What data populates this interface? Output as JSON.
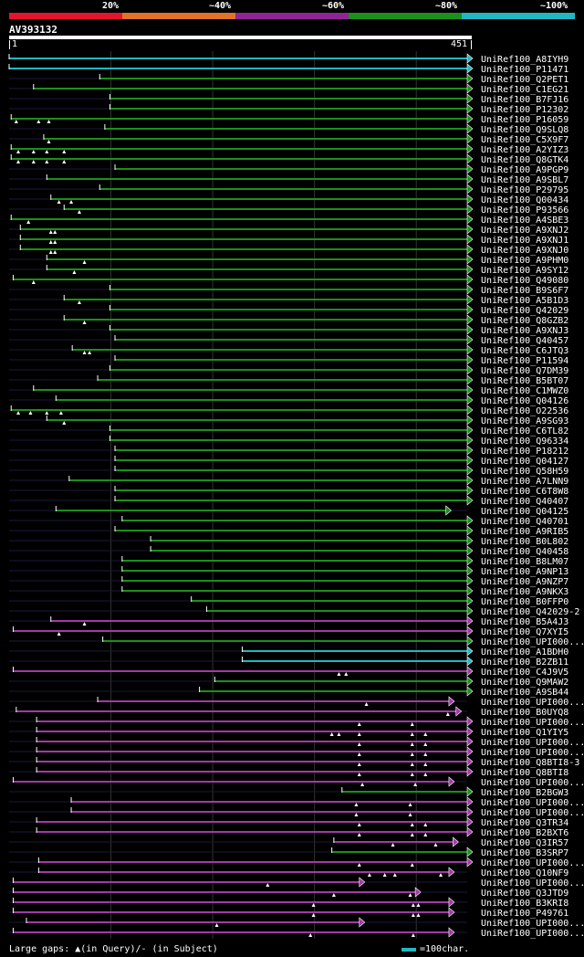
{
  "legend": {
    "segments": [
      {
        "label": "20%",
        "color": "#e4142e"
      },
      {
        "label": "~40%",
        "color": "#e27226"
      },
      {
        "label": "~60%",
        "color": "#8f2594"
      },
      {
        "label": "~80%",
        "color": "#1c8f1c"
      },
      {
        "label": "~100%",
        "color": "#21b7c2"
      }
    ]
  },
  "query": {
    "id": "AV393132",
    "start": "1",
    "end": "451",
    "length": 451
  },
  "footer": {
    "gaps_text": "Large gaps: ▲(in Query)/- (in Subject)",
    "scale_text": "=100char."
  },
  "colors": {
    "cyan": "#21b7c2",
    "green": "#1c8f1c",
    "purple": "#a23aa6",
    "faint": "#1a1a3a",
    "grid": "#333333"
  },
  "hits": [
    {
      "name": "UniRef100_A8IYH9",
      "color": "cyan",
      "start": 1,
      "end": 451,
      "tri": []
    },
    {
      "name": "UniRef100_P11471",
      "color": "cyan",
      "start": 1,
      "end": 451,
      "tri": []
    },
    {
      "name": "UniRef100_Q2PET1",
      "color": "green",
      "start": 90,
      "end": 451,
      "tri": []
    },
    {
      "name": "UniRef100_C1EG21",
      "color": "green",
      "start": 25,
      "end": 451,
      "tri": []
    },
    {
      "name": "UniRef100_B7FJ16",
      "color": "green",
      "start": 100,
      "end": 451,
      "tri": []
    },
    {
      "name": "UniRef100_P12302",
      "color": "green",
      "start": 100,
      "end": 451,
      "tri": []
    },
    {
      "name": "UniRef100_P16059",
      "color": "green",
      "start": 3,
      "end": 451,
      "tri": [
        8,
        30,
        40
      ]
    },
    {
      "name": "UniRef100_Q9SLQ8",
      "color": "green",
      "start": 95,
      "end": 451,
      "tri": []
    },
    {
      "name": "UniRef100_C5X9F7",
      "color": "green",
      "start": 35,
      "end": 451,
      "tri": [
        40
      ]
    },
    {
      "name": "UniRef100_A2YIZ3",
      "color": "green",
      "start": 3,
      "end": 451,
      "tri": [
        10,
        25,
        38,
        55
      ]
    },
    {
      "name": "UniRef100_Q8GTK4",
      "color": "green",
      "start": 3,
      "end": 451,
      "tri": [
        10,
        25,
        38,
        55
      ]
    },
    {
      "name": "UniRef100_A9PGP9",
      "color": "green",
      "start": 105,
      "end": 451,
      "tri": []
    },
    {
      "name": "UniRef100_A9SBL7",
      "color": "green",
      "start": 38,
      "end": 451,
      "tri": []
    },
    {
      "name": "UniRef100_P29795",
      "color": "green",
      "start": 90,
      "end": 451,
      "tri": []
    },
    {
      "name": "UniRef100_Q00434",
      "color": "green",
      "start": 42,
      "end": 451,
      "tri": [
        50,
        62
      ]
    },
    {
      "name": "UniRef100_P93566",
      "color": "green",
      "start": 55,
      "end": 451,
      "tri": [
        70
      ]
    },
    {
      "name": "UniRef100_A4SBE3",
      "color": "green",
      "start": 3,
      "end": 451,
      "tri": [
        20
      ]
    },
    {
      "name": "UniRef100_A9XNJ2",
      "color": "green",
      "start": 12,
      "end": 451,
      "tri": [
        42,
        46
      ]
    },
    {
      "name": "UniRef100_A9XNJ1",
      "color": "green",
      "start": 12,
      "end": 451,
      "tri": [
        42,
        46
      ]
    },
    {
      "name": "UniRef100_A9XNJ0",
      "color": "green",
      "start": 12,
      "end": 451,
      "tri": [
        42,
        46
      ]
    },
    {
      "name": "UniRef100_A9PHM0",
      "color": "green",
      "start": 38,
      "end": 451,
      "tri": [
        75
      ]
    },
    {
      "name": "UniRef100_A9SY12",
      "color": "green",
      "start": 38,
      "end": 451,
      "tri": [
        65
      ]
    },
    {
      "name": "UniRef100_Q49080",
      "color": "green",
      "start": 5,
      "end": 451,
      "tri": [
        25
      ]
    },
    {
      "name": "UniRef100_B9S6F7",
      "color": "green",
      "start": 100,
      "end": 451,
      "tri": []
    },
    {
      "name": "UniRef100_A5B1D3",
      "color": "green",
      "start": 55,
      "end": 451,
      "tri": [
        70
      ]
    },
    {
      "name": "UniRef100_Q42029",
      "color": "green",
      "start": 100,
      "end": 451,
      "tri": []
    },
    {
      "name": "UniRef100_Q8GZB2",
      "color": "green",
      "start": 55,
      "end": 451,
      "tri": [
        75
      ]
    },
    {
      "name": "UniRef100_A9XNJ3",
      "color": "green",
      "start": 100,
      "end": 451,
      "tri": []
    },
    {
      "name": "UniRef100_Q40457",
      "color": "green",
      "start": 105,
      "end": 451,
      "tri": []
    },
    {
      "name": "UniRef100_C6JTQ3",
      "color": "green",
      "start": 63,
      "end": 451,
      "tri": [
        75,
        80
      ]
    },
    {
      "name": "UniRef100_P11594",
      "color": "green",
      "start": 105,
      "end": 451,
      "tri": []
    },
    {
      "name": "UniRef100_Q7DM39",
      "color": "green",
      "start": 100,
      "end": 451,
      "tri": []
    },
    {
      "name": "UniRef100_B5BT07",
      "color": "green",
      "start": 88,
      "end": 451,
      "tri": []
    },
    {
      "name": "UniRef100_C1MWZ0",
      "color": "green",
      "start": 25,
      "end": 451,
      "tri": []
    },
    {
      "name": "UniRef100_Q04126",
      "color": "green",
      "start": 47,
      "end": 451,
      "tri": []
    },
    {
      "name": "UniRef100_O22536",
      "color": "green",
      "start": 3,
      "end": 451,
      "tri": [
        10,
        22,
        38,
        52
      ]
    },
    {
      "name": "UniRef100_A9SG93",
      "color": "green",
      "start": 38,
      "end": 451,
      "tri": [
        55
      ]
    },
    {
      "name": "UniRef100_C6TL82",
      "color": "green",
      "start": 100,
      "end": 451,
      "tri": []
    },
    {
      "name": "UniRef100_Q96334",
      "color": "green",
      "start": 100,
      "end": 451,
      "tri": []
    },
    {
      "name": "UniRef100_P18212",
      "color": "green",
      "start": 105,
      "end": 451,
      "tri": []
    },
    {
      "name": "UniRef100_Q04127",
      "color": "green",
      "start": 105,
      "end": 451,
      "tri": []
    },
    {
      "name": "UniRef100_Q58H59",
      "color": "green",
      "start": 105,
      "end": 451,
      "tri": []
    },
    {
      "name": "UniRef100_A7LNN9",
      "color": "green",
      "start": 60,
      "end": 451,
      "tri": []
    },
    {
      "name": "UniRef100_C6T8W8",
      "color": "green",
      "start": 105,
      "end": 451,
      "tri": []
    },
    {
      "name": "UniRef100_Q40407",
      "color": "green",
      "start": 105,
      "end": 451,
      "tri": []
    },
    {
      "name": "UniRef100_Q04125",
      "color": "green",
      "start": 47,
      "end": 430,
      "tri": []
    },
    {
      "name": "UniRef100_Q40701",
      "color": "green",
      "start": 112,
      "end": 451,
      "tri": []
    },
    {
      "name": "UniRef100_A9RIB5",
      "color": "green",
      "start": 105,
      "end": 451,
      "tri": []
    },
    {
      "name": "UniRef100_B0L802",
      "color": "green",
      "start": 140,
      "end": 451,
      "tri": []
    },
    {
      "name": "UniRef100_Q40458",
      "color": "green",
      "start": 140,
      "end": 451,
      "tri": []
    },
    {
      "name": "UniRef100_B8LM07",
      "color": "green",
      "start": 112,
      "end": 451,
      "tri": []
    },
    {
      "name": "UniRef100_A9NP13",
      "color": "green",
      "start": 112,
      "end": 451,
      "tri": []
    },
    {
      "name": "UniRef100_A9NZP7",
      "color": "green",
      "start": 112,
      "end": 451,
      "tri": []
    },
    {
      "name": "UniRef100_A9NKX3",
      "color": "green",
      "start": 112,
      "end": 451,
      "tri": []
    },
    {
      "name": "UniRef100_B0FFP0",
      "color": "green",
      "start": 180,
      "end": 451,
      "tri": []
    },
    {
      "name": "UniRef100_Q42029-2",
      "color": "green",
      "start": 195,
      "end": 451,
      "tri": []
    },
    {
      "name": "UniRef100_B5A4J3",
      "color": "purple",
      "start": 42,
      "end": 451,
      "tri": [
        75
      ]
    },
    {
      "name": "UniRef100_Q7XYI5",
      "color": "purple",
      "start": 5,
      "end": 451,
      "tri": [
        50
      ]
    },
    {
      "name": "UniRef100_UPI000...",
      "color": "green",
      "start": 93,
      "end": 451,
      "tri": []
    },
    {
      "name": "UniRef100_A1BDH0",
      "color": "cyan",
      "start": 230,
      "end": 451,
      "tri": []
    },
    {
      "name": "UniRef100_B2ZB11",
      "color": "cyan",
      "start": 230,
      "end": 451,
      "tri": []
    },
    {
      "name": "UniRef100_C4J9V5",
      "color": "purple",
      "start": 5,
      "end": 451,
      "tri": [
        325,
        332
      ]
    },
    {
      "name": "UniRef100_Q9MAW2",
      "color": "green",
      "start": 203,
      "end": 451,
      "tri": []
    },
    {
      "name": "UniRef100_A9SB44",
      "color": "green",
      "start": 188,
      "end": 451,
      "tri": []
    },
    {
      "name": "UniRef100_UPI000...",
      "color": "purple",
      "start": 88,
      "end": 433,
      "tri": [
        352
      ]
    },
    {
      "name": "UniRef100_B0UYQ8",
      "color": "purple",
      "start": 8,
      "end": 440,
      "tri": [
        432
      ]
    },
    {
      "name": "UniRef100_UPI000...",
      "color": "purple",
      "start": 28,
      "end": 451,
      "tri": [
        345,
        397
      ]
    },
    {
      "name": "UniRef100_Q1YIY5",
      "color": "purple",
      "start": 28,
      "end": 451,
      "tri": [
        318,
        325,
        345,
        397,
        410
      ]
    },
    {
      "name": "UniRef100_UPI000...",
      "color": "purple",
      "start": 28,
      "end": 451,
      "tri": [
        345,
        397,
        410
      ]
    },
    {
      "name": "UniRef100_UPI000...",
      "color": "purple",
      "start": 28,
      "end": 451,
      "tri": [
        345,
        397,
        410
      ]
    },
    {
      "name": "UniRef100_Q8BTI8-3",
      "color": "purple",
      "start": 28,
      "end": 451,
      "tri": [
        345,
        397,
        410
      ]
    },
    {
      "name": "UniRef100_Q8BTI8",
      "color": "purple",
      "start": 28,
      "end": 451,
      "tri": [
        345,
        397,
        410
      ]
    },
    {
      "name": "UniRef100_UPI000...",
      "color": "purple",
      "start": 5,
      "end": 433,
      "tri": [
        348,
        400
      ]
    },
    {
      "name": "UniRef100_B2BGW3",
      "color": "green",
      "start": 328,
      "end": 451,
      "tri": []
    },
    {
      "name": "UniRef100_UPI000...",
      "color": "purple",
      "start": 62,
      "end": 451,
      "tri": [
        342,
        395
      ]
    },
    {
      "name": "UniRef100_UPI000...",
      "color": "purple",
      "start": 62,
      "end": 451,
      "tri": [
        342,
        395
      ]
    },
    {
      "name": "UniRef100_Q3TR34",
      "color": "purple",
      "start": 28,
      "end": 451,
      "tri": [
        345,
        397,
        410
      ]
    },
    {
      "name": "UniRef100_B2BXT6",
      "color": "purple",
      "start": 28,
      "end": 451,
      "tri": [
        345,
        397,
        410
      ]
    },
    {
      "name": "UniRef100_Q3IR57",
      "color": "purple",
      "start": 320,
      "end": 437,
      "tri": [
        378,
        420
      ]
    },
    {
      "name": "UniRef100_B3SRP7",
      "color": "green",
      "start": 318,
      "end": 451,
      "tri": []
    },
    {
      "name": "UniRef100_UPI000...",
      "color": "purple",
      "start": 30,
      "end": 451,
      "tri": [
        345,
        397
      ]
    },
    {
      "name": "UniRef100_Q10NF9",
      "color": "purple",
      "start": 30,
      "end": 433,
      "tri": [
        355,
        370,
        380,
        425
      ]
    },
    {
      "name": "UniRef100_UPI000...",
      "color": "purple",
      "start": 5,
      "end": 345,
      "tri": [
        255
      ]
    },
    {
      "name": "UniRef100_Q3JTD9",
      "color": "purple",
      "start": 5,
      "end": 400,
      "tri": [
        320,
        395
      ]
    },
    {
      "name": "UniRef100_B3KRI8",
      "color": "purple",
      "start": 5,
      "end": 433,
      "tri": [
        300,
        398,
        403
      ]
    },
    {
      "name": "UniRef100_P49761",
      "color": "purple",
      "start": 5,
      "end": 433,
      "tri": [
        300,
        398,
        403
      ]
    },
    {
      "name": "UniRef100_UPI000...",
      "color": "purple",
      "start": 18,
      "end": 345,
      "tri": [
        205
      ]
    },
    {
      "name": "UniRef100_UPI000...",
      "color": "purple",
      "start": 5,
      "end": 433,
      "tri": [
        297,
        398
      ]
    }
  ]
}
